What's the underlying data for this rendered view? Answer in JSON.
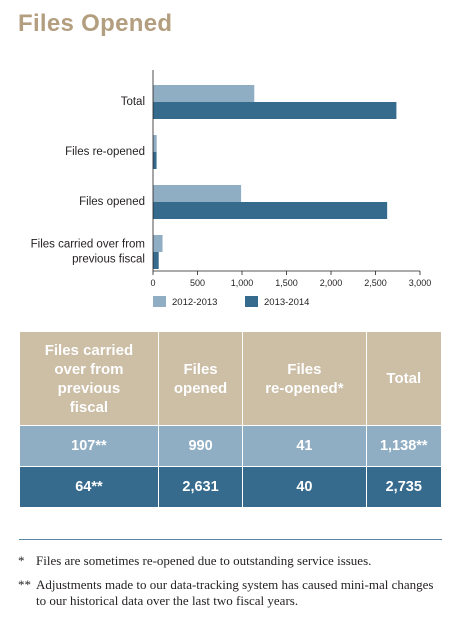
{
  "title": "Files Opened",
  "chart_data": {
    "type": "bar",
    "orientation": "horizontal",
    "categories": [
      "Total",
      "Files re-opened",
      "Files opened",
      "Files carried over from\nprevious fiscal"
    ],
    "series": [
      {
        "name": "2012-2013",
        "values": [
          1138,
          41,
          990,
          107
        ],
        "color": "#8fadc3"
      },
      {
        "name": "2013-2014",
        "values": [
          2735,
          40,
          2631,
          64
        ],
        "color": "#366b8e"
      }
    ],
    "xticks": [
      "0",
      "500",
      "1,000",
      "1,500",
      "2,000",
      "2,500",
      "3,000"
    ],
    "xlim": [
      0,
      3000
    ],
    "legend_position": "bottom-left",
    "grid": false
  },
  "table": {
    "headers": [
      "Files carried\nover from\nprevious\nfiscal",
      "Files\nopened",
      "Files\nre-opened*",
      "Total"
    ],
    "rows": [
      [
        "107**",
        "990",
        "41",
        "1,138**"
      ],
      [
        "64**",
        "2,631",
        "40",
        "2,735"
      ]
    ]
  },
  "footnotes": [
    {
      "mark": "*",
      "text": "Files are sometimes re-opened due to outstanding service issues."
    },
    {
      "mark": "**",
      "text": "Adjustments made to our data-tracking system has caused mini-mal changes to our historical data over the last two fiscal years."
    }
  ]
}
